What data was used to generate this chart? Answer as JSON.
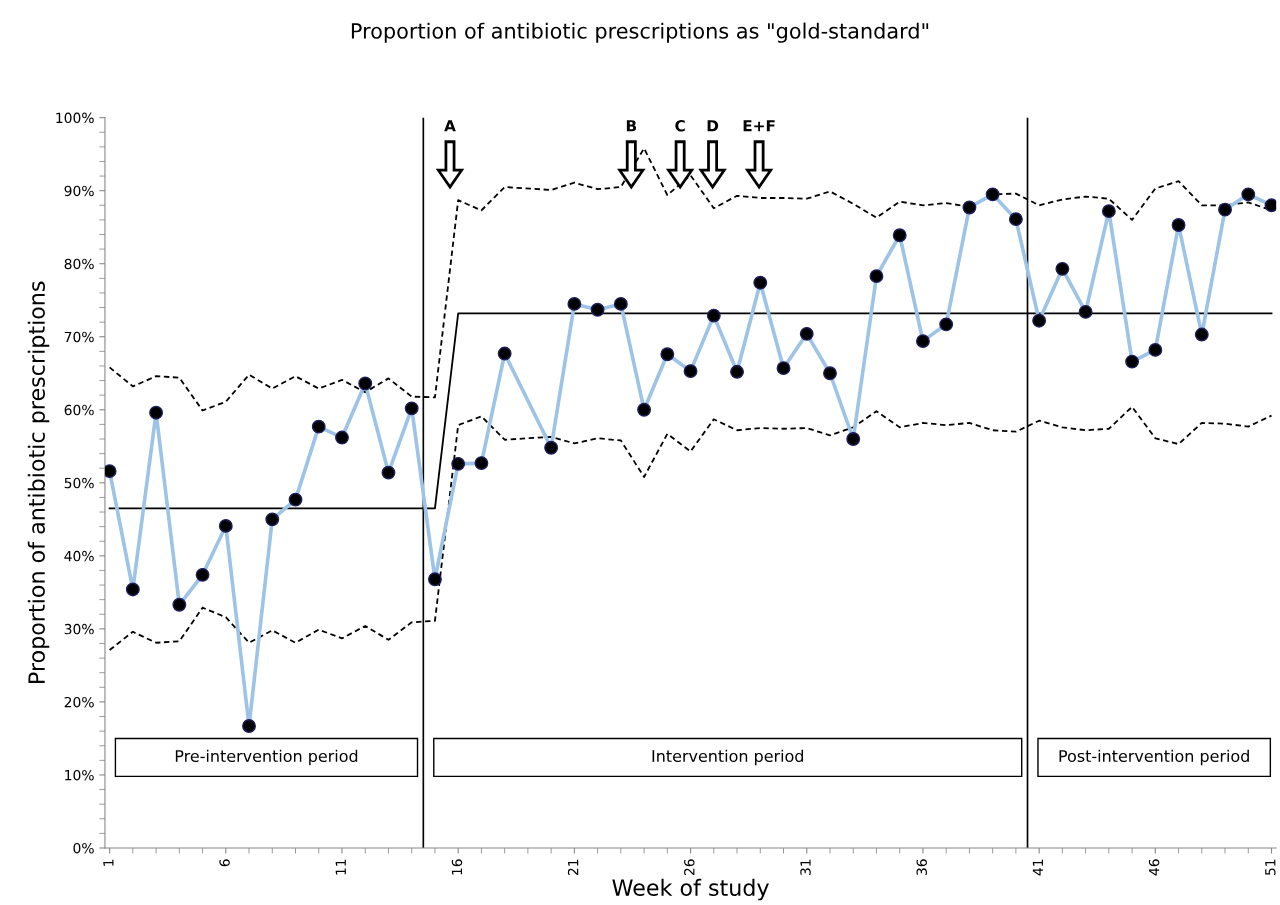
{
  "chart_data": {
    "type": "line",
    "title": "Proportion of antibiotic prescriptions as \"gold-standard\"",
    "xlabel": "Week of study",
    "ylabel": "Proportion of antibiotic prescriptions",
    "x": [
      1,
      2,
      3,
      4,
      5,
      6,
      7,
      8,
      9,
      10,
      11,
      12,
      13,
      14,
      15,
      16,
      17,
      18,
      19,
      20,
      21,
      22,
      23,
      24,
      25,
      26,
      27,
      28,
      29,
      30,
      31,
      32,
      33,
      34,
      35,
      36,
      37,
      38,
      39,
      40,
      41,
      42,
      43,
      44,
      45,
      46,
      47,
      48,
      49,
      50,
      51
    ],
    "series": [
      {
        "color": "#000000",
        "line_style": "dashed",
        "marker": "none",
        "values": [
          65.8,
          63.2,
          64.6,
          64.4,
          59.9,
          61.1,
          64.8,
          62.9,
          64.6,
          62.9,
          64.1,
          62.4,
          64.3,
          61.8,
          61.7,
          88.7,
          87.3,
          90.5,
          null,
          90.1,
          91.1,
          90.2,
          90.5,
          95.8,
          89.4,
          92.1,
          87.6,
          89.3,
          89.0,
          89.0,
          88.9,
          89.9,
          88.2,
          86.3,
          88.5,
          88.0,
          88.3,
          87.8,
          89.5,
          89.6,
          88.0,
          88.8,
          89.2,
          88.9,
          86.0,
          90.3,
          91.3,
          88.0,
          88.0,
          88.4,
          87.3
        ]
      },
      {
        "color": "#000000",
        "line_style": "dashed",
        "marker": "none",
        "values": [
          27.1,
          29.6,
          28.1,
          28.3,
          32.9,
          31.6,
          28.1,
          29.8,
          28.1,
          29.9,
          28.7,
          30.4,
          28.5,
          30.9,
          31.1,
          57.9,
          59.1,
          55.9,
          null,
          56.3,
          55.4,
          56.1,
          55.8,
          50.8,
          56.7,
          54.3,
          58.7,
          57.2,
          57.5,
          57.4,
          57.5,
          56.5,
          57.6,
          59.8,
          57.6,
          58.2,
          57.9,
          58.2,
          57.2,
          57.0,
          58.5,
          57.6,
          57.2,
          57.4,
          60.4,
          56.1,
          55.3,
          58.2,
          58.1,
          57.7,
          59.2
        ]
      },
      {
        "color": "#000000",
        "line_style": "solid",
        "marker": "none",
        "x": [
          1,
          15,
          16,
          51
        ],
        "values": [
          46.5,
          46.5,
          73.2,
          73.2
        ]
      },
      {
        "color": "#9dc3e6",
        "line_style": "solid",
        "marker": "circle",
        "values": [
          51.6,
          35.4,
          59.6,
          33.3,
          37.4,
          44.1,
          16.7,
          45.0,
          47.7,
          57.7,
          56.2,
          63.6,
          51.4,
          60.2,
          36.8,
          52.6,
          52.7,
          67.7,
          null,
          54.8,
          74.5,
          73.7,
          74.5,
          60.0,
          67.6,
          65.3,
          72.9,
          65.2,
          77.4,
          65.7,
          70.4,
          65.0,
          56.0,
          78.3,
          83.9,
          69.4,
          71.7,
          87.7,
          89.5,
          86.1,
          72.2,
          79.3,
          73.4,
          87.2,
          66.6,
          68.2,
          85.3,
          70.3,
          87.4,
          89.5,
          88.0
        ]
      }
    ],
    "xlim": [
      0.8,
      51.2
    ],
    "xticks": [
      1,
      6,
      11,
      16,
      21,
      26,
      31,
      36,
      41,
      46,
      51
    ],
    "ylim": [
      0,
      100
    ],
    "yticks": [
      {
        "value": 0,
        "label": "0%"
      },
      {
        "value": 10,
        "label": "10%"
      },
      {
        "value": 20,
        "label": "20%"
      },
      {
        "value": 30,
        "label": "30%"
      },
      {
        "value": 40,
        "label": "40%"
      },
      {
        "value": 50,
        "label": "50%"
      },
      {
        "value": 60,
        "label": "60%"
      },
      {
        "value": 70,
        "label": "70%"
      },
      {
        "value": 80,
        "label": "80%"
      },
      {
        "value": 90,
        "label": "90%"
      },
      {
        "value": 100,
        "label": "100%"
      }
    ],
    "ref_lines": [
      {
        "axis": "x",
        "value": 14.5,
        "color": "#000000"
      },
      {
        "axis": "x",
        "value": 40.5,
        "color": "#000000"
      }
    ],
    "annotations": [
      "Pre-intervention period",
      "Intervention period",
      "Post-intervention period",
      "A",
      "B",
      "C",
      "D",
      "E+F"
    ],
    "grid": false,
    "legend": false
  }
}
